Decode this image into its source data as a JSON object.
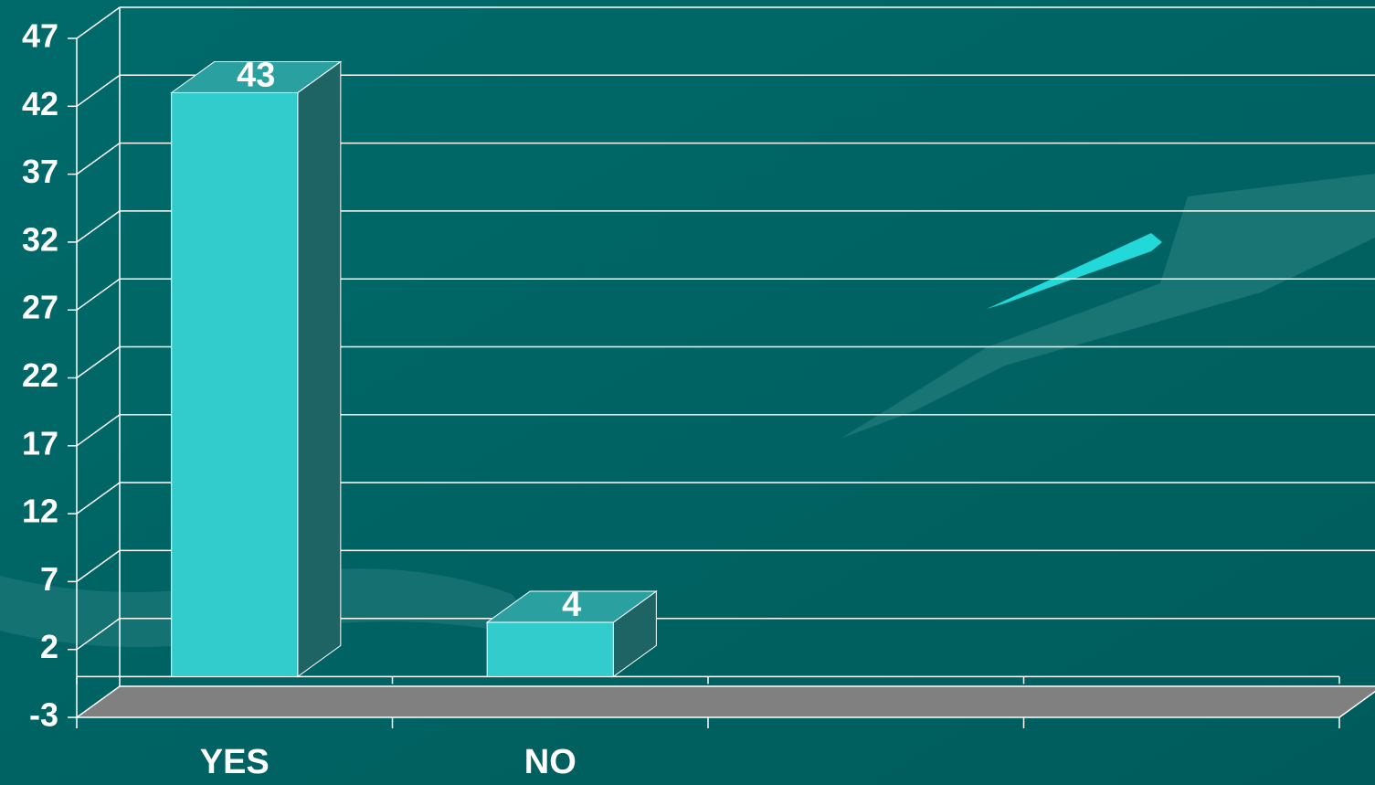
{
  "chart_data": {
    "type": "bar3d",
    "categories": [
      "YES",
      "NO",
      null,
      null
    ],
    "values": [
      43,
      4,
      null,
      null
    ],
    "color": "#33cccc",
    "ylim": [
      -3,
      47
    ],
    "yticks": [
      -3,
      2,
      7,
      12,
      17,
      22,
      27,
      32,
      37,
      42,
      47
    ],
    "grid": true
  }
}
